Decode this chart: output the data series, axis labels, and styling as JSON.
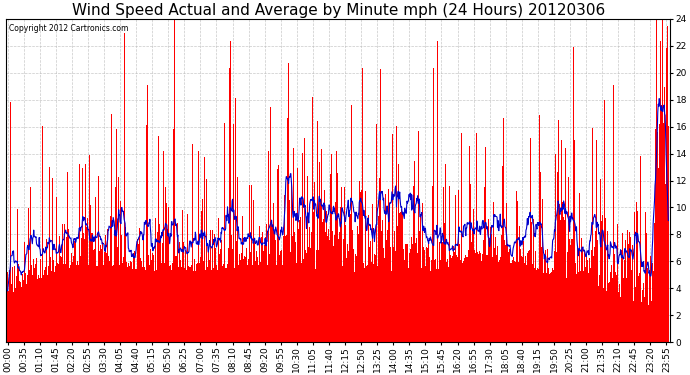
{
  "title": "Wind Speed Actual and Average by Minute mph (24 Hours) 20120306",
  "copyright_text": "Copyright 2012 Cartronics.com",
  "ylim": [
    0.0,
    24.0
  ],
  "yticks": [
    0.0,
    2.0,
    4.0,
    6.0,
    8.0,
    10.0,
    12.0,
    14.0,
    16.0,
    18.0,
    20.0,
    22.0,
    24.0
  ],
  "background_color": "#ffffff",
  "plot_bg_color": "#ffffff",
  "bar_color": "#ff0000",
  "avg_line_color": "#0000cc",
  "grid_color": "#bbbbbb",
  "title_fontsize": 11,
  "tick_fontsize": 6.5,
  "num_minutes": 1440,
  "avg_window": 15,
  "x_tick_labels": [
    "00:00",
    "00:35",
    "01:10",
    "01:45",
    "02:20",
    "02:55",
    "03:30",
    "04:05",
    "04:40",
    "05:15",
    "05:50",
    "06:25",
    "07:00",
    "07:35",
    "08:10",
    "08:45",
    "09:20",
    "09:55",
    "10:30",
    "11:05",
    "11:40",
    "12:15",
    "12:50",
    "13:25",
    "14:00",
    "14:35",
    "15:10",
    "15:45",
    "16:20",
    "16:55",
    "17:30",
    "18:05",
    "18:40",
    "19:15",
    "19:50",
    "20:25",
    "21:00",
    "21:35",
    "22:10",
    "22:45",
    "23:20",
    "23:55"
  ]
}
